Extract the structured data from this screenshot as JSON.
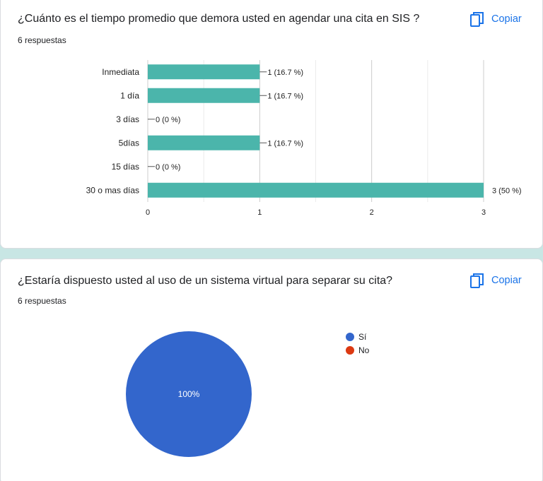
{
  "questions": [
    {
      "title": "¿Cuánto es el  tiempo promedio que demora usted en agendar una cita en SIS ?",
      "responses": "6 respuestas",
      "copy_label": "Copiar"
    },
    {
      "title": "¿Estaría dispuesto usted al uso de un sistema virtual para separar su cita?",
      "responses": "6 respuestas",
      "copy_label": "Copiar"
    }
  ],
  "colors": {
    "bar": "#4bb5ab",
    "pie_si": "#3366cc",
    "pie_no": "#dc3912",
    "accent": "#1a8f82",
    "link": "#1a73e8"
  },
  "chart_data": [
    {
      "type": "bar",
      "orientation": "horizontal",
      "categories": [
        "Inmediata",
        "1 día",
        "3 días",
        "5días",
        "15 días",
        "30 o mas días"
      ],
      "values": [
        1,
        1,
        0,
        1,
        0,
        3
      ],
      "data_labels": [
        "1 (16.7 %)",
        "1 (16.7 %)",
        "0 (0 %)",
        "1 (16.7 %)",
        "0 (0 %)",
        "3 (50 %)"
      ],
      "xlim": [
        0,
        3
      ],
      "xticks": [
        "0",
        "1",
        "2",
        "3"
      ],
      "grid": true
    },
    {
      "type": "pie",
      "categories": [
        "Sí",
        "No"
      ],
      "values": [
        6,
        0
      ],
      "slice_labels": [
        "100%",
        ""
      ],
      "legend_position": "right"
    }
  ]
}
